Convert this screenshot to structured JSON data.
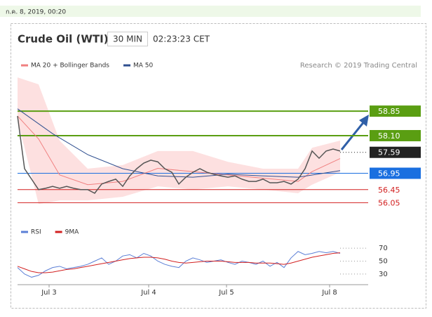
{
  "header": {
    "timestamp": "ก.ค. 8, 2019, 00:20"
  },
  "chart_data": [
    {
      "type": "line",
      "title": "Crude Oil (WTI)",
      "timeframe": "30 MIN",
      "time": "02:23:23 CET",
      "credit": "Research © 2019 Trading Central",
      "xlim": [
        0,
        50
      ],
      "ylim": [
        55.8,
        60.0
      ],
      "xticks": [
        {
          "value": 4.5,
          "label": "Jul 3"
        },
        {
          "value": 18.7,
          "label": "Jul 4"
        },
        {
          "value": 29.8,
          "label": "Jul 5"
        },
        {
          "value": 44.5,
          "label": "Jul 8"
        }
      ],
      "price": {
        "color": "#555555",
        "x": [
          0,
          1,
          2,
          3,
          4,
          5,
          6,
          7,
          8,
          9,
          10,
          11,
          12,
          13,
          14,
          15,
          16,
          17,
          18,
          19,
          20,
          21,
          22,
          23,
          24,
          25,
          26,
          27,
          28,
          29,
          30,
          31,
          32,
          33,
          34,
          35,
          36,
          37,
          38,
          39,
          40,
          41,
          42,
          43,
          44,
          45,
          46
        ],
        "values": [
          58.7,
          57.09,
          56.77,
          56.45,
          56.49,
          56.55,
          56.49,
          56.55,
          56.49,
          56.45,
          56.45,
          56.34,
          56.62,
          56.7,
          56.77,
          56.55,
          56.87,
          57.09,
          57.26,
          57.35,
          57.3,
          57.09,
          56.98,
          56.62,
          56.83,
          56.98,
          57.09,
          56.98,
          56.92,
          56.87,
          56.83,
          56.87,
          56.77,
          56.7,
          56.7,
          56.77,
          56.66,
          56.66,
          56.7,
          56.62,
          56.77,
          57.09,
          57.63,
          57.41,
          57.63,
          57.69,
          57.63
        ]
      },
      "series": [
        {
          "name": "MA 20 + Bollinger Bands",
          "color": "#f08080",
          "band_color": "#fde0e0",
          "x": [
            0,
            3,
            6,
            10,
            15,
            20,
            25,
            30,
            35,
            40,
            42,
            46
          ],
          "values": [
            58.7,
            58.0,
            56.9,
            56.6,
            56.7,
            57.1,
            57.0,
            56.9,
            56.8,
            56.7,
            57.0,
            57.4
          ],
          "upper": [
            59.88,
            59.67,
            57.95,
            57.09,
            57.2,
            57.63,
            57.63,
            57.3,
            57.09,
            57.09,
            57.73,
            57.95
          ],
          "lower": [
            58.59,
            56.01,
            56.12,
            56.12,
            56.23,
            56.55,
            56.45,
            56.55,
            56.45,
            56.34,
            56.6,
            56.98
          ]
        },
        {
          "name": "MA 50",
          "color": "#2f4f8f",
          "x": [
            0,
            5,
            10,
            15,
            20,
            25,
            30,
            35,
            40,
            46
          ],
          "values": [
            58.92,
            58.16,
            57.52,
            57.09,
            56.87,
            56.83,
            56.92,
            56.87,
            56.83,
            57.03
          ]
        }
      ],
      "levels": [
        {
          "value": 58.85,
          "label": "58.85",
          "color": "#5a9e12",
          "box": true,
          "width": 2
        },
        {
          "value": 58.1,
          "label": "58.10",
          "color": "#5a9e12",
          "box": true,
          "width": 2
        },
        {
          "value": 57.59,
          "label": "57.59",
          "color": "#222222",
          "box": true,
          "width": 1,
          "dotted": true
        },
        {
          "value": 56.95,
          "label": "56.95",
          "color": "#1a6fe0",
          "box": true,
          "width": 1
        },
        {
          "value": 56.45,
          "label": "56.45",
          "color": "#d22020",
          "box": false,
          "width": 1
        },
        {
          "value": 56.05,
          "label": "56.05",
          "color": "#d22020",
          "box": false,
          "width": 1
        }
      ]
    },
    {
      "type": "line",
      "xlim": [
        0,
        50
      ],
      "ylim": [
        20,
        80
      ],
      "yticks": [
        30,
        50,
        70
      ],
      "series": [
        {
          "name": "RSI",
          "color": "#5b7fd6",
          "x": [
            0,
            1,
            2,
            3,
            4,
            5,
            6,
            7,
            8,
            9,
            10,
            11,
            12,
            13,
            14,
            15,
            16,
            17,
            18,
            19,
            20,
            21,
            22,
            23,
            24,
            25,
            26,
            27,
            28,
            29,
            30,
            31,
            32,
            33,
            34,
            35,
            36,
            37,
            38,
            39,
            40,
            41,
            42,
            43,
            44,
            45,
            46
          ],
          "values": [
            40,
            30,
            25,
            28,
            35,
            40,
            42,
            38,
            40,
            42,
            45,
            50,
            55,
            45,
            50,
            58,
            60,
            55,
            62,
            58,
            50,
            45,
            42,
            40,
            50,
            55,
            52,
            48,
            50,
            52,
            48,
            45,
            50,
            48,
            45,
            50,
            42,
            48,
            40,
            55,
            65,
            60,
            62,
            65,
            63,
            65,
            62
          ]
        },
        {
          "name": "9MA",
          "color": "#d22020",
          "x": [
            0,
            1,
            2,
            3,
            4,
            5,
            6,
            7,
            8,
            9,
            10,
            11,
            12,
            13,
            14,
            15,
            16,
            17,
            18,
            19,
            20,
            21,
            22,
            23,
            24,
            25,
            26,
            27,
            28,
            29,
            30,
            31,
            32,
            33,
            34,
            35,
            36,
            37,
            38,
            39,
            40,
            41,
            42,
            43,
            44,
            45,
            46
          ],
          "values": [
            42,
            38,
            34,
            32,
            32,
            33,
            35,
            37,
            38,
            40,
            42,
            44,
            46,
            48,
            50,
            52,
            54,
            55,
            56,
            56,
            55,
            53,
            50,
            48,
            47,
            48,
            49,
            50,
            50,
            50,
            49,
            48,
            48,
            48,
            47,
            47,
            47,
            46,
            45,
            47,
            50,
            53,
            56,
            58,
            60,
            62,
            63
          ]
        }
      ]
    }
  ]
}
